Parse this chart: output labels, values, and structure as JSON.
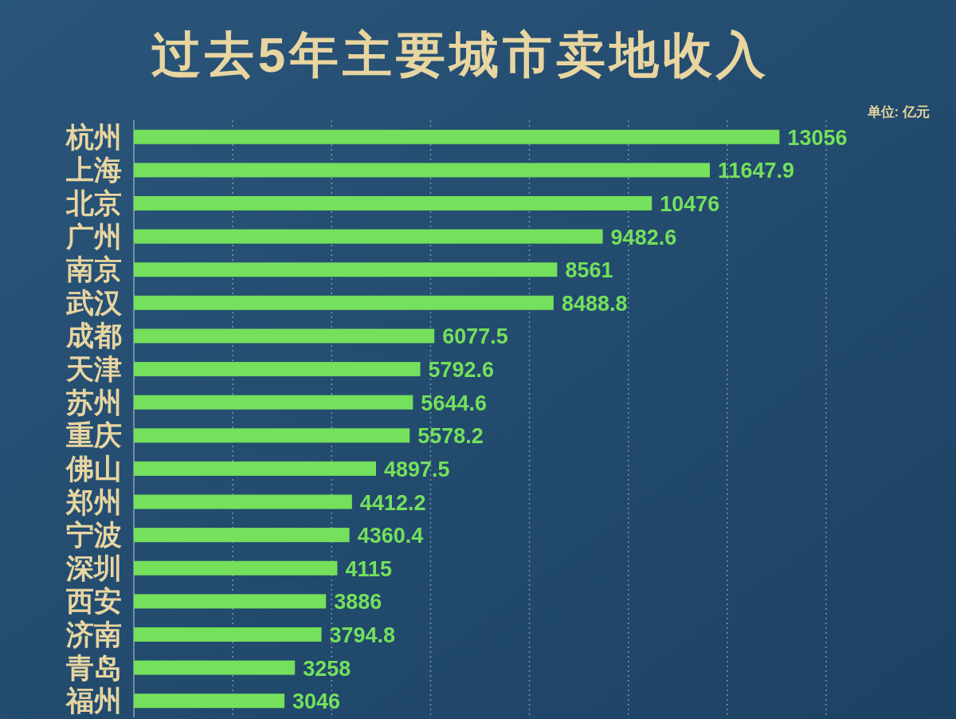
{
  "chart_data": {
    "type": "bar",
    "orientation": "horizontal",
    "title": "过去5年主要城市卖地收入",
    "annotations": [
      "单位: 亿元"
    ],
    "categories": [
      "杭州",
      "上海",
      "北京",
      "广州",
      "南京",
      "武汉",
      "成都",
      "天津",
      "苏州",
      "重庆",
      "佛山",
      "郑州",
      "宁波",
      "深圳",
      "西安",
      "济南",
      "青岛",
      "福州"
    ],
    "values": [
      13056,
      11647.9,
      10476,
      9482.6,
      8561,
      8488.8,
      6077.5,
      5792.6,
      5644.6,
      5578.2,
      4897.5,
      4412.2,
      4360.4,
      4115,
      3886,
      3794.8,
      3258,
      3046
    ],
    "color": "#74e05c",
    "data_labels": true,
    "xlim": [
      0,
      14000
    ],
    "xticks": [
      {
        "value": 0,
        "label": null
      },
      {
        "value": 2000,
        "label": null
      },
      {
        "value": 4000,
        "label": null
      },
      {
        "value": 6000,
        "label": null
      },
      {
        "value": 8000,
        "label": null
      },
      {
        "value": 10000,
        "label": null
      },
      {
        "value": 12000,
        "label": null
      },
      {
        "value": 14000,
        "label": null
      }
    ],
    "grid": "x",
    "tick_labels": "y"
  }
}
